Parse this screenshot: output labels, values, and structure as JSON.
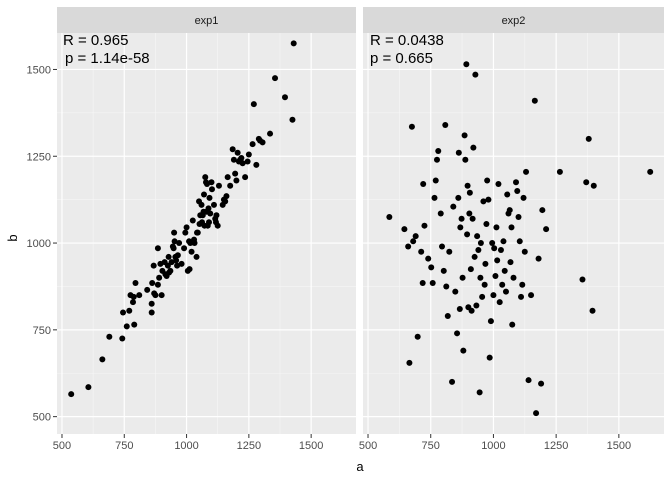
{
  "chart_data": {
    "type": "scatter",
    "xlabel": "a",
    "ylabel": "b",
    "xlim": [
      480,
      1680
    ],
    "ylim": [
      450,
      1605
    ],
    "xticks": [
      500,
      750,
      1000,
      1250,
      1500
    ],
    "yticks": [
      500,
      750,
      1000,
      1250,
      1500
    ],
    "grid": true,
    "point_color": "#000000",
    "panel_bg": "#ebebeb",
    "strip_bg": "#d9d9d9",
    "panels": [
      {
        "name": "exp1",
        "annotation": [
          "R = 0.965",
          "p = 1.14e-58"
        ],
        "points": [
          [
            537,
            565
          ],
          [
            606,
            585
          ],
          [
            662,
            665
          ],
          [
            690,
            730
          ],
          [
            742,
            725
          ],
          [
            745,
            800
          ],
          [
            760,
            760
          ],
          [
            770,
            805
          ],
          [
            775,
            850
          ],
          [
            785,
            830
          ],
          [
            788,
            845
          ],
          [
            790,
            765
          ],
          [
            795,
            885
          ],
          [
            810,
            850
          ],
          [
            842,
            865
          ],
          [
            860,
            800
          ],
          [
            860,
            825
          ],
          [
            862,
            885
          ],
          [
            868,
            935
          ],
          [
            870,
            855
          ],
          [
            875,
            850
          ],
          [
            885,
            985
          ],
          [
            885,
            880
          ],
          [
            890,
            900
          ],
          [
            895,
            940
          ],
          [
            900,
            850
          ],
          [
            903,
            920
          ],
          [
            912,
            945
          ],
          [
            915,
            910
          ],
          [
            920,
            905
          ],
          [
            925,
            935
          ],
          [
            928,
            960
          ],
          [
            930,
            915
          ],
          [
            935,
            920
          ],
          [
            940,
            945
          ],
          [
            945,
            990
          ],
          [
            948,
            985
          ],
          [
            950,
            1030
          ],
          [
            952,
            1005
          ],
          [
            955,
            960
          ],
          [
            958,
            950
          ],
          [
            962,
            935
          ],
          [
            965,
            965
          ],
          [
            970,
            1000
          ],
          [
            980,
            940
          ],
          [
            990,
            985
          ],
          [
            995,
            1030
          ],
          [
            1000,
            1045
          ],
          [
            1005,
            920
          ],
          [
            1010,
            1005
          ],
          [
            1012,
            925
          ],
          [
            1015,
            1000
          ],
          [
            1020,
            975
          ],
          [
            1025,
            1065
          ],
          [
            1030,
            1010
          ],
          [
            1032,
            1000
          ],
          [
            1040,
            960
          ],
          [
            1042,
            1030
          ],
          [
            1045,
            1030
          ],
          [
            1050,
            1120
          ],
          [
            1052,
            1055
          ],
          [
            1055,
            1080
          ],
          [
            1060,
            1110
          ],
          [
            1062,
            1060
          ],
          [
            1065,
            1080
          ],
          [
            1068,
            1090
          ],
          [
            1070,
            1140
          ],
          [
            1072,
            1050
          ],
          [
            1075,
            1190
          ],
          [
            1078,
            1175
          ],
          [
            1080,
            1090
          ],
          [
            1082,
            1170
          ],
          [
            1085,
            1050
          ],
          [
            1088,
            1100
          ],
          [
            1090,
            1060
          ],
          [
            1092,
            1130
          ],
          [
            1095,
            1085
          ],
          [
            1100,
            1175
          ],
          [
            1102,
            1155
          ],
          [
            1110,
            1110
          ],
          [
            1115,
            1070
          ],
          [
            1118,
            1060
          ],
          [
            1120,
            1080
          ],
          [
            1125,
            1050
          ],
          [
            1130,
            1165
          ],
          [
            1145,
            1110
          ],
          [
            1150,
            1125
          ],
          [
            1155,
            1120
          ],
          [
            1160,
            1135
          ],
          [
            1165,
            1190
          ],
          [
            1175,
            1165
          ],
          [
            1185,
            1270
          ],
          [
            1190,
            1240
          ],
          [
            1195,
            1200
          ],
          [
            1200,
            1180
          ],
          [
            1205,
            1260
          ],
          [
            1210,
            1235
          ],
          [
            1215,
            1240
          ],
          [
            1220,
            1245
          ],
          [
            1225,
            1230
          ],
          [
            1235,
            1190
          ],
          [
            1245,
            1235
          ],
          [
            1250,
            1255
          ],
          [
            1265,
            1285
          ],
          [
            1270,
            1400
          ],
          [
            1280,
            1225
          ],
          [
            1290,
            1300
          ],
          [
            1295,
            1295
          ],
          [
            1305,
            1290
          ],
          [
            1335,
            1315
          ],
          [
            1355,
            1475
          ],
          [
            1395,
            1420
          ],
          [
            1425,
            1355
          ],
          [
            1430,
            1575
          ]
        ]
      },
      {
        "name": "exp2",
        "annotation": [
          "R = 0.0438",
          "p = 0.665"
        ],
        "points": [
          [
            585,
            1075
          ],
          [
            645,
            1040
          ],
          [
            660,
            990
          ],
          [
            665,
            655
          ],
          [
            675,
            1335
          ],
          [
            680,
            1005
          ],
          [
            690,
            1020
          ],
          [
            698,
            730
          ],
          [
            712,
            975
          ],
          [
            718,
            885
          ],
          [
            720,
            1170
          ],
          [
            725,
            1050
          ],
          [
            740,
            955
          ],
          [
            752,
            930
          ],
          [
            758,
            885
          ],
          [
            765,
            1130
          ],
          [
            770,
            1180
          ],
          [
            775,
            1240
          ],
          [
            780,
            1265
          ],
          [
            790,
            1085
          ],
          [
            795,
            990
          ],
          [
            802,
            920
          ],
          [
            808,
            1340
          ],
          [
            812,
            875
          ],
          [
            818,
            790
          ],
          [
            824,
            975
          ],
          [
            835,
            600
          ],
          [
            840,
            1105
          ],
          [
            848,
            860
          ],
          [
            855,
            740
          ],
          [
            860,
            1130
          ],
          [
            862,
            1260
          ],
          [
            866,
            810
          ],
          [
            868,
            1045
          ],
          [
            873,
            1070
          ],
          [
            877,
            900
          ],
          [
            880,
            690
          ],
          [
            885,
            1310
          ],
          [
            888,
            1240
          ],
          [
            892,
            1515
          ],
          [
            895,
            1025
          ],
          [
            897,
            1165
          ],
          [
            900,
            815
          ],
          [
            904,
            1085
          ],
          [
            906,
            1145
          ],
          [
            910,
            925
          ],
          [
            913,
            805
          ],
          [
            917,
            1070
          ],
          [
            920,
            1275
          ],
          [
            925,
            960
          ],
          [
            928,
            1485
          ],
          [
            932,
            820
          ],
          [
            935,
            1020
          ],
          [
            940,
            980
          ],
          [
            945,
            570
          ],
          [
            948,
            900
          ],
          [
            950,
            1000
          ],
          [
            955,
            845
          ],
          [
            960,
            1120
          ],
          [
            965,
            880
          ],
          [
            968,
            940
          ],
          [
            972,
            1055
          ],
          [
            975,
            1180
          ],
          [
            980,
            1125
          ],
          [
            985,
            670
          ],
          [
            990,
            775
          ],
          [
            995,
            1000
          ],
          [
            1000,
            850
          ],
          [
            1003,
            985
          ],
          [
            1008,
            905
          ],
          [
            1012,
            1045
          ],
          [
            1015,
            950
          ],
          [
            1020,
            1170
          ],
          [
            1025,
            830
          ],
          [
            1030,
            980
          ],
          [
            1035,
            880
          ],
          [
            1040,
            1005
          ],
          [
            1045,
            920
          ],
          [
            1050,
            860
          ],
          [
            1055,
            1140
          ],
          [
            1060,
            1085
          ],
          [
            1065,
            1095
          ],
          [
            1068,
            945
          ],
          [
            1072,
            1045
          ],
          [
            1075,
            765
          ],
          [
            1080,
            900
          ],
          [
            1090,
            1175
          ],
          [
            1095,
            1150
          ],
          [
            1100,
            1075
          ],
          [
            1105,
            1005
          ],
          [
            1110,
            845
          ],
          [
            1115,
            880
          ],
          [
            1120,
            1130
          ],
          [
            1125,
            975
          ],
          [
            1130,
            1205
          ],
          [
            1140,
            605
          ],
          [
            1150,
            850
          ],
          [
            1165,
            1410
          ],
          [
            1170,
            510
          ],
          [
            1180,
            955
          ],
          [
            1190,
            595
          ],
          [
            1195,
            1095
          ],
          [
            1210,
            1040
          ],
          [
            1265,
            1205
          ],
          [
            1355,
            895
          ],
          [
            1370,
            1175
          ],
          [
            1380,
            1300
          ],
          [
            1395,
            805
          ],
          [
            1400,
            1165
          ],
          [
            1625,
            1205
          ]
        ]
      }
    ]
  }
}
